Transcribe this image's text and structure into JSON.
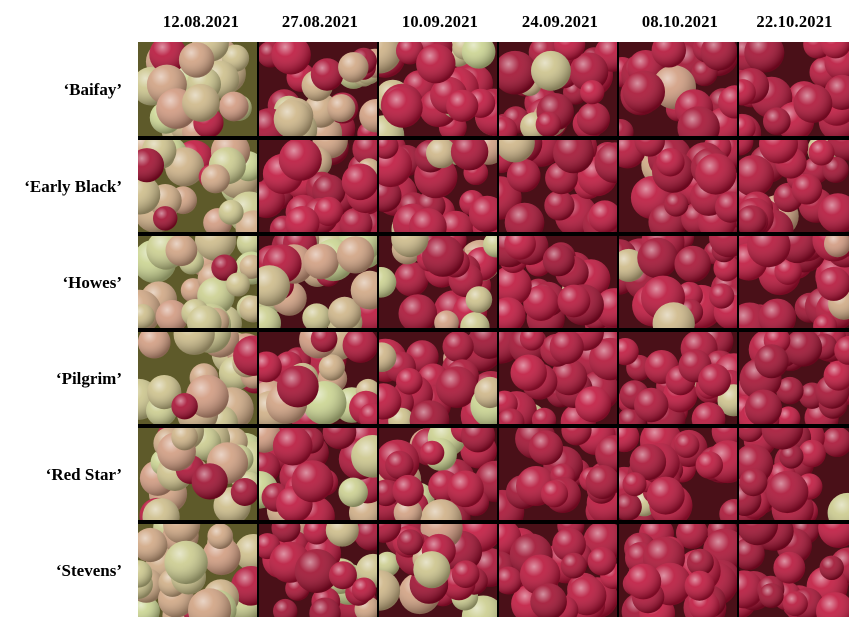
{
  "dates": [
    "12.08.2021",
    "27.08.2021",
    "10.09.2021",
    "24.09.2021",
    "08.10.2021",
    "22.10.2021"
  ],
  "cultivars": [
    "‘Baifay’",
    "‘Early Black’",
    "‘Howes’",
    "‘Pilgrim’",
    "‘Red Star’",
    "‘Stevens’"
  ],
  "colors": {
    "unripe": "#c9d58f",
    "blush": "#d8586a",
    "red": "#c0123a",
    "dark_red": "#8a0724",
    "background": "#4a1018",
    "divider": "#000000"
  },
  "ripeness": [
    [
      0.05,
      0.45,
      0.7,
      0.88,
      0.95,
      0.96
    ],
    [
      0.12,
      0.82,
      0.85,
      0.9,
      0.95,
      0.96
    ],
    [
      0.05,
      0.35,
      0.6,
      0.88,
      0.92,
      0.95
    ],
    [
      0.15,
      0.7,
      0.8,
      0.95,
      0.96,
      0.97
    ],
    [
      0.2,
      0.8,
      0.88,
      0.95,
      0.96,
      0.97
    ],
    [
      0.05,
      0.75,
      0.8,
      0.92,
      0.94,
      0.96
    ]
  ]
}
